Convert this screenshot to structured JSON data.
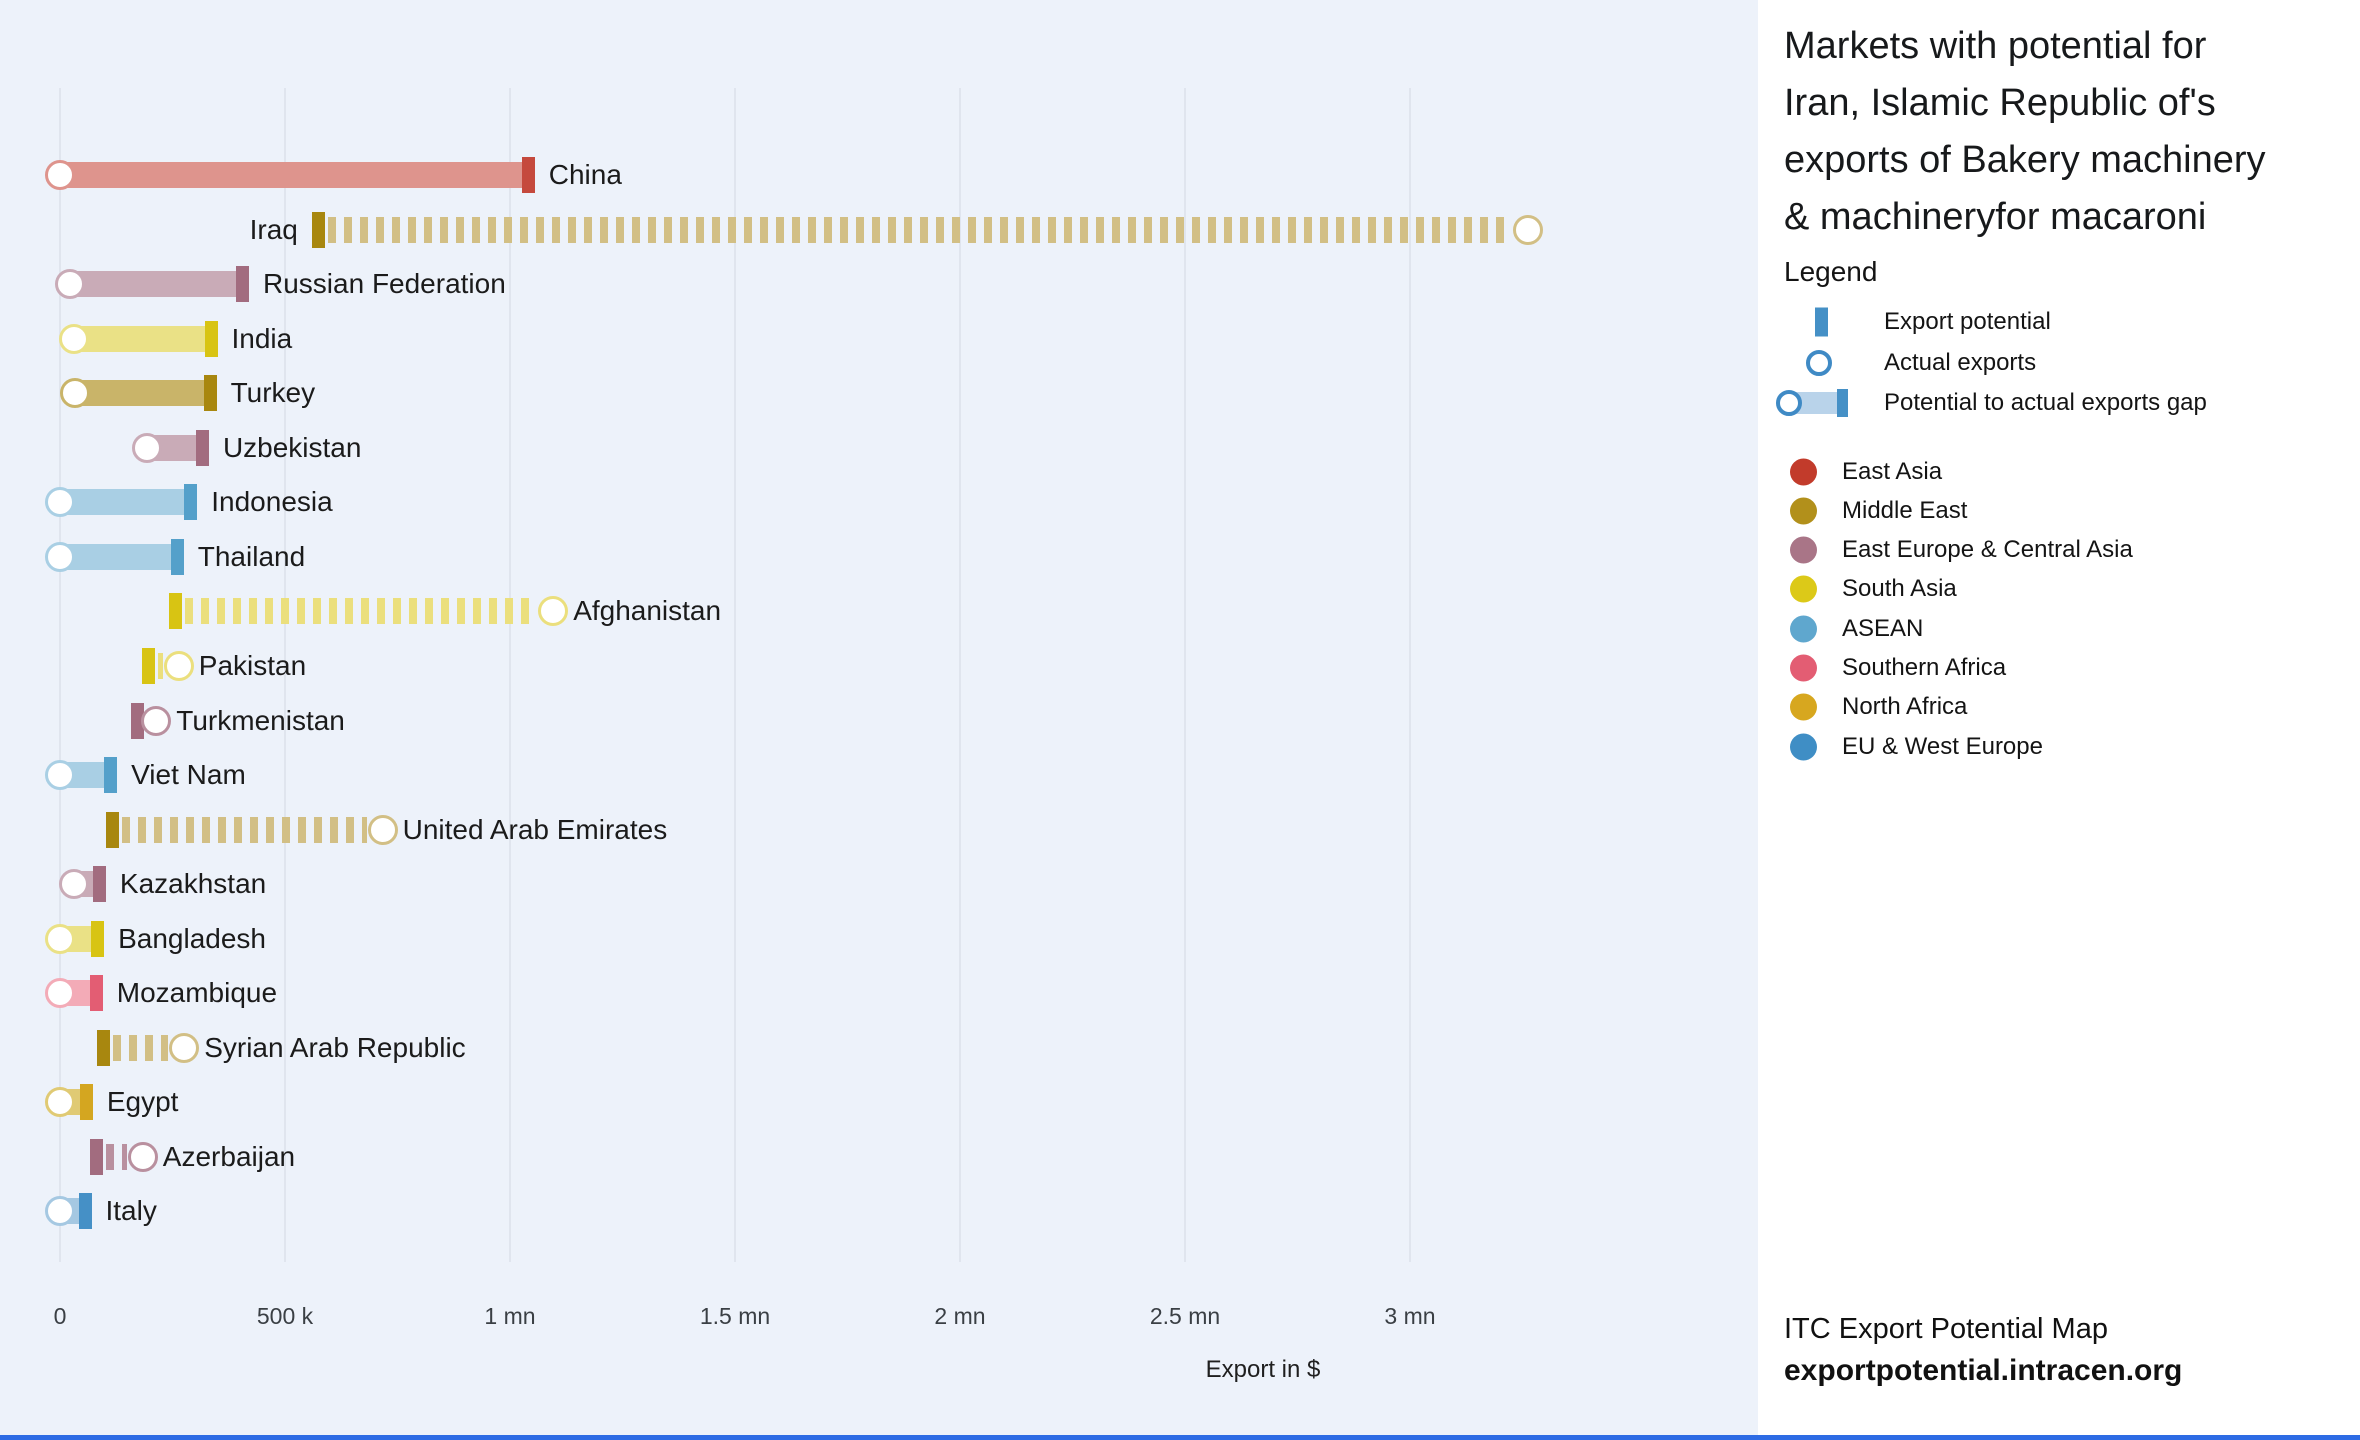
{
  "panel": {
    "title": "Markets with potential for Iran, Islamic Republic of's exports of Bakery machinery & machineryfor macaroni",
    "legend_title": "Legend",
    "legend_items": [
      {
        "key": "potential",
        "label": "Export potential"
      },
      {
        "key": "actual",
        "label": "Actual exports"
      },
      {
        "key": "gap",
        "label": "Potential to actual exports gap"
      }
    ],
    "footer_line1": "ITC Export Potential Map",
    "footer_line2": "exportpotential.intracen.org"
  },
  "colors": {
    "accent_blue": "#4590c6",
    "accent_blue_light": "#b9d3ea",
    "chart_background": "#edf2fa",
    "panel_background": "#ffffff",
    "gridline": "#e0e5ee",
    "bottom_strip": "#2d6be4"
  },
  "chart_data": {
    "type": "bar",
    "orientation": "horizontal",
    "title": "Markets with potential for Iran, Islamic Republic of's exports of Bakery machinery & machineryfor macaroni",
    "xlabel": "Export in $",
    "ylabel": "",
    "xlim": [
      0,
      3350000
    ],
    "grid": "vertical",
    "x_ticks": [
      {
        "value": 0,
        "label": "0"
      },
      {
        "value": 500000,
        "label": "500 k"
      },
      {
        "value": 1000000,
        "label": "1 mn"
      },
      {
        "value": 1500000,
        "label": "1.5 mn"
      },
      {
        "value": 2000000,
        "label": "2 mn"
      },
      {
        "value": 2500000,
        "label": "2.5 mn"
      },
      {
        "value": 3000000,
        "label": "3 mn"
      }
    ],
    "series_semantics": {
      "export_potential": "solid cap marker position",
      "actual_exports": "circle marker position",
      "gap_fill": "light solid bar when potential exceeds actual, dashed bar when actual exceeds potential"
    },
    "regions": [
      {
        "name": "East Asia",
        "dot": "#c23b2b",
        "cap": "#c5493d",
        "bar": "#de948d",
        "dash": "#d9a79f"
      },
      {
        "name": "Middle East",
        "dot": "#b2901b",
        "cap": "#a8870f",
        "bar": "#c9b469",
        "dash": "#d2bf85"
      },
      {
        "name": "East Europe & Central Asia",
        "dot": "#a97587",
        "cap": "#a26c7f",
        "bar": "#c9abb7",
        "dash": "#b9909f"
      },
      {
        "name": "South Asia",
        "dot": "#dcc918",
        "cap": "#d8c413",
        "bar": "#eae186",
        "dash": "#ebdf7d"
      },
      {
        "name": "ASEAN",
        "dot": "#5fa7ce",
        "cap": "#54a0ca",
        "bar": "#a9cfe4",
        "dash": "#a9cfe4"
      },
      {
        "name": "Southern Africa",
        "dot": "#e35d73",
        "cap": "#e35d73",
        "bar": "#f3abb7",
        "dash": "#f3abb7"
      },
      {
        "name": "North Africa",
        "dot": "#d7a71f",
        "cap": "#d4a620",
        "bar": "#e0ca74",
        "dash": "#e0ca74"
      },
      {
        "name": "EU & West Europe",
        "dot": "#3f8ec5",
        "cap": "#4590c6",
        "bar": "#a5c8e2",
        "dash": "#a5c8e2"
      }
    ],
    "rows": [
      {
        "country": "China",
        "region": "East Asia",
        "actual_exports": 0,
        "export_potential": 1055000,
        "label_side": "right"
      },
      {
        "country": "Iraq",
        "region": "Middle East",
        "actual_exports": 3263000,
        "export_potential": 573000,
        "label_side": "left"
      },
      {
        "country": "Russian Federation",
        "region": "East Europe & Central Asia",
        "actual_exports": 23000,
        "export_potential": 420000,
        "label_side": "right"
      },
      {
        "country": "India",
        "region": "South Asia",
        "actual_exports": 30000,
        "export_potential": 350000,
        "label_side": "right"
      },
      {
        "country": "Turkey",
        "region": "Middle East",
        "actual_exports": 33000,
        "export_potential": 348000,
        "label_side": "right"
      },
      {
        "country": "Uzbekistan",
        "region": "East Europe & Central Asia",
        "actual_exports": 193000,
        "export_potential": 331000,
        "label_side": "right"
      },
      {
        "country": "Indonesia",
        "region": "ASEAN",
        "actual_exports": 0,
        "export_potential": 305000,
        "label_side": "right"
      },
      {
        "country": "Thailand",
        "region": "ASEAN",
        "actual_exports": 0,
        "export_potential": 275000,
        "label_side": "right"
      },
      {
        "country": "Afghanistan",
        "region": "South Asia",
        "actual_exports": 1096000,
        "export_potential": 255000,
        "label_side": "right"
      },
      {
        "country": "Pakistan",
        "region": "South Asia",
        "actual_exports": 264000,
        "export_potential": 196000,
        "label_side": "right"
      },
      {
        "country": "Turkmenistan",
        "region": "East Europe & Central Asia",
        "actual_exports": 214000,
        "export_potential": 171000,
        "label_side": "right"
      },
      {
        "country": "Viet Nam",
        "region": "ASEAN",
        "actual_exports": 0,
        "export_potential": 127000,
        "label_side": "right"
      },
      {
        "country": "United Arab Emirates",
        "region": "Middle East",
        "actual_exports": 717000,
        "export_potential": 115000,
        "label_side": "right"
      },
      {
        "country": "Kazakhstan",
        "region": "East Europe & Central Asia",
        "actual_exports": 30000,
        "export_potential": 102000,
        "label_side": "right"
      },
      {
        "country": "Bangladesh",
        "region": "South Asia",
        "actual_exports": 0,
        "export_potential": 98000,
        "label_side": "right"
      },
      {
        "country": "Mozambique",
        "region": "Southern Africa",
        "actual_exports": 0,
        "export_potential": 95000,
        "label_side": "right"
      },
      {
        "country": "Syrian Arab Republic",
        "region": "Middle East",
        "actual_exports": 276000,
        "export_potential": 95000,
        "label_side": "right"
      },
      {
        "country": "Egypt",
        "region": "North Africa",
        "actual_exports": 0,
        "export_potential": 73000,
        "label_side": "right"
      },
      {
        "country": "Azerbaijan",
        "region": "East Europe & Central Asia",
        "actual_exports": 184000,
        "export_potential": 79000,
        "label_side": "right"
      },
      {
        "country": "Italy",
        "region": "EU & West Europe",
        "actual_exports": 0,
        "export_potential": 70000,
        "label_side": "right"
      }
    ]
  }
}
